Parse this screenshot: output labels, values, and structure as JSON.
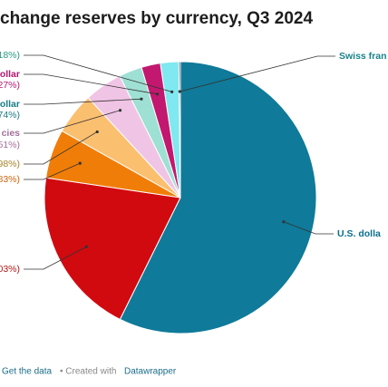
{
  "chart_data": {
    "type": "pie",
    "title": "change reserves by currency, Q3 2024",
    "categories": [
      "U.S. dolla",
      null,
      null,
      null,
      "cies",
      "ollar",
      "ollar",
      null,
      "Swiss fran"
    ],
    "values": [
      57.39,
      20.03,
      5.83,
      4.98,
      4.51,
      2.74,
      2.27,
      2.18,
      0.18
    ],
    "value_labels": [
      null,
      "03%)",
      "83%)",
      "98%)",
      "51%)",
      "74%)",
      "27%)",
      "18%)",
      null
    ],
    "colors": [
      "#0f7a99",
      "#d10a10",
      "#f07d08",
      "#fbbf70",
      "#f0c4e4",
      "#9fe0d4",
      "#c2186f",
      "#7fe8f0",
      "#2e3f4a"
    ],
    "label_colors": [
      "#0c6f8a",
      "#b01818",
      "#c8650d",
      "#a8842a",
      "#a4709b",
      "#1b7c85",
      "#b5176e",
      "#2a9a80",
      "#19838a"
    ],
    "footer": {
      "get_data": "Get the data",
      "created": "• Created with",
      "tool": "Datawrapper"
    }
  }
}
